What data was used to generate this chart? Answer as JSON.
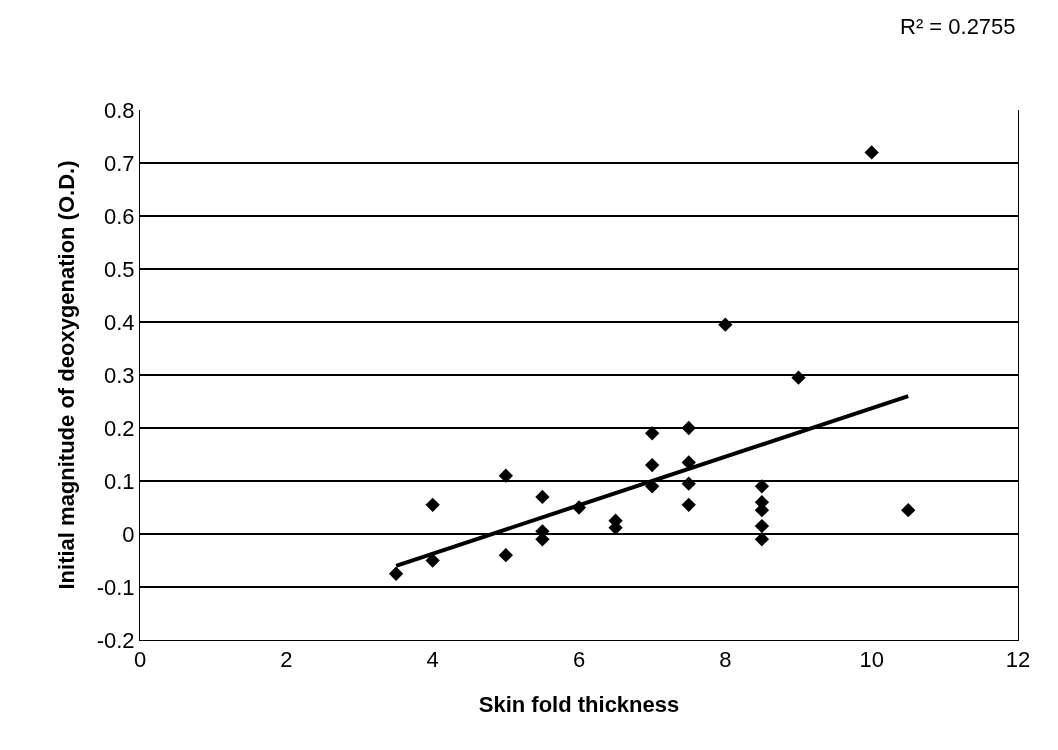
{
  "chart_data": {
    "type": "scatter",
    "xlabel": "Skin fold thickness",
    "ylabel": "Initial magnitude of deoxygenation (O.D.)",
    "annotations": [
      "R² = 0.2755"
    ],
    "series": [
      {
        "color": "#000000",
        "marker": "diamond",
        "x": [
          3.5,
          4.0,
          4.0,
          5.0,
          5.0,
          5.5,
          5.5,
          5.5,
          6.0,
          6.5,
          6.5,
          7.0,
          7.0,
          7.0,
          7.5,
          7.5,
          7.5,
          7.5,
          8.0,
          8.5,
          8.5,
          8.5,
          8.5,
          8.5,
          9.0,
          10.0,
          10.5
        ],
        "values": [
          -0.075,
          0.055,
          -0.05,
          0.11,
          -0.04,
          0.07,
          0.005,
          -0.01,
          0.05,
          0.025,
          0.012,
          0.19,
          0.13,
          0.09,
          0.2,
          0.135,
          0.095,
          0.055,
          0.395,
          0.09,
          0.06,
          0.045,
          0.015,
          -0.01,
          0.295,
          0.72,
          0.045
        ]
      },
      {
        "type": "line",
        "color": "#000000",
        "marker": "none",
        "x": [
          3.5,
          10.5
        ],
        "values": [
          -0.06,
          0.26
        ]
      }
    ],
    "xlim": [
      0,
      12
    ],
    "xticks": [
      0,
      2,
      4,
      6,
      8,
      10,
      12
    ],
    "ylim": [
      -0.2,
      0.8
    ],
    "yticks": [
      -0.2,
      -0.1,
      0,
      0.1,
      0.2,
      0.3,
      0.4,
      0.5,
      0.6,
      0.7,
      0.8
    ],
    "grid": "y",
    "legend": false
  }
}
